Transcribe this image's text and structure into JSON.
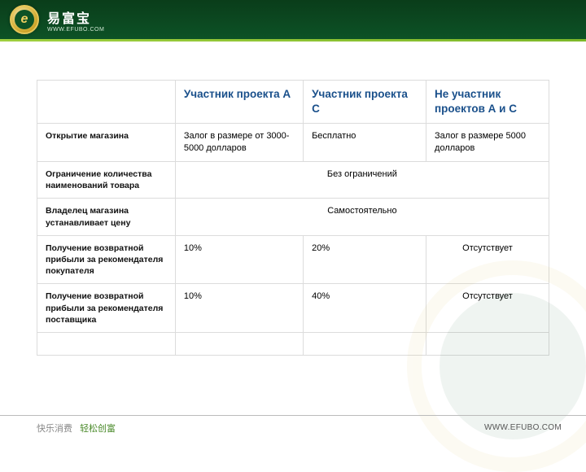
{
  "brand": {
    "logo_letter": "e",
    "name": "易富宝",
    "url": "WWW.EFUBO.COM"
  },
  "table": {
    "headers": [
      "",
      "Участник проекта А",
      "Участник проекта С",
      "Не участник проектов А и С"
    ],
    "rows": [
      {
        "label": "Открытие магазина",
        "cells": [
          "Залог в размере от 3000-5000 долларов",
          "Бесплатно",
          "Залог в размере 5000 долларов"
        ],
        "span": false
      },
      {
        "label": "Ограничение количества наименований товара",
        "merged": "Без ограничений"
      },
      {
        "label": "Владелец магазина устанавливает цену",
        "merged": "Самостоятельно"
      },
      {
        "label": "Получение возвратной прибыли за рекомендателя покупателя",
        "cells": [
          "10%",
          "20%",
          "Отсутствует"
        ],
        "center_last": true
      },
      {
        "label": "Получение возвратной прибыли за рекомендателя поставщика",
        "cells": [
          "10%",
          "40%",
          "Отсутствует"
        ],
        "center_last": true
      }
    ]
  },
  "footer": {
    "left_grey": "快乐消费",
    "left_green": "轻松创富",
    "right": "WWW.EFUBO.COM"
  },
  "colors": {
    "header_bg_top": "#0a3d1a",
    "header_bg_bottom": "#0d5226",
    "accent_bar": "#9fcf3f",
    "th_color": "#1a508b",
    "border": "#dcdcdc"
  }
}
